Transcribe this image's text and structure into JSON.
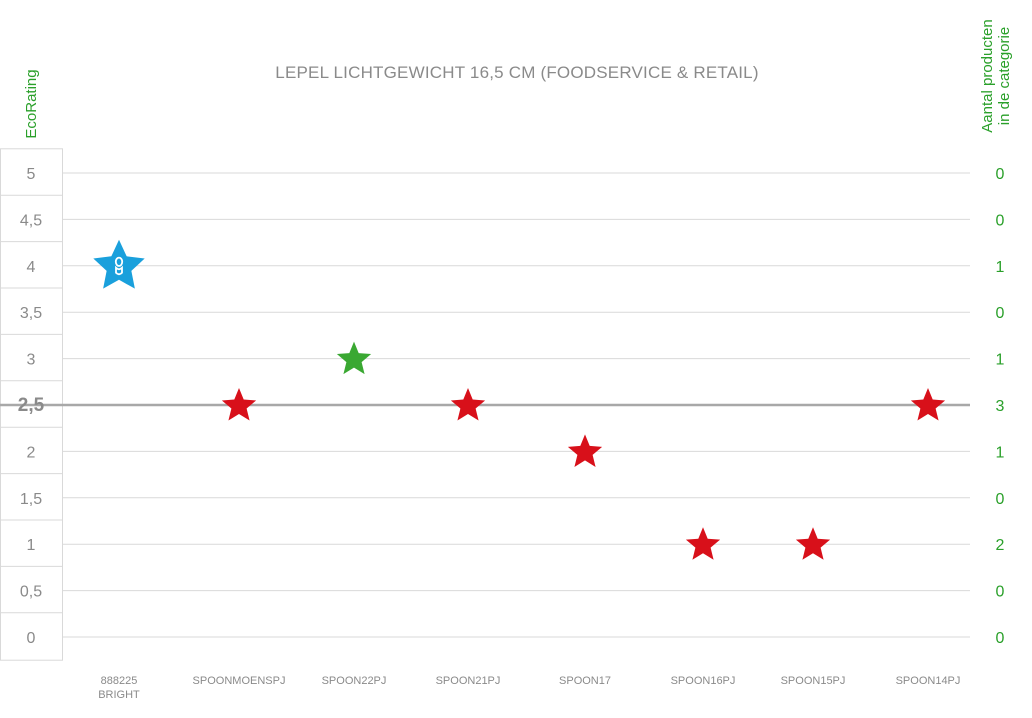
{
  "chart_data": {
    "type": "scatter",
    "title": "LEPEL LICHTGEWICHT 16,5 CM (FOODSERVICE & RETAIL)",
    "ylabel_left": "EcoRating",
    "ylabel_right": [
      "Aantal producten",
      "in de categorie"
    ],
    "ylim": [
      0,
      5
    ],
    "y_ticks": [
      "0",
      "0,5",
      "1",
      "1,5",
      "2",
      "2,5",
      "3",
      "3,5",
      "4",
      "4,5",
      "5"
    ],
    "y_tick_values": [
      0,
      0.5,
      1,
      1.5,
      2,
      2.5,
      3,
      3.5,
      4,
      4.5,
      5
    ],
    "right_counts": [
      "0",
      "0",
      "2",
      "0",
      "1",
      "3",
      "1",
      "0",
      "1",
      "0",
      "0"
    ],
    "reference_line": {
      "value": 2.5,
      "label": "2,5"
    },
    "categories": [
      [
        "888225",
        "BRIGHT"
      ],
      [
        "SPOONMOENSPJ"
      ],
      [
        "SPOON22PJ"
      ],
      [
        "SPOON21PJ"
      ],
      [
        "SPOON17"
      ],
      [
        "SPOON16PJ"
      ],
      [
        "SPOON15PJ"
      ],
      [
        "SPOON14PJ"
      ]
    ],
    "values": [
      4,
      2.5,
      3,
      2.5,
      2,
      1,
      1,
      2.5
    ],
    "point_colors": [
      "#1aa0dc",
      "#d8101a",
      "#3aa832",
      "#d8101a",
      "#d8101a",
      "#d8101a",
      "#d8101a",
      "#d8101a"
    ],
    "point_markers": [
      "star-with-logo",
      "star",
      "star",
      "star",
      "star",
      "star",
      "star",
      "star"
    ],
    "grid": true,
    "legend": "none"
  }
}
